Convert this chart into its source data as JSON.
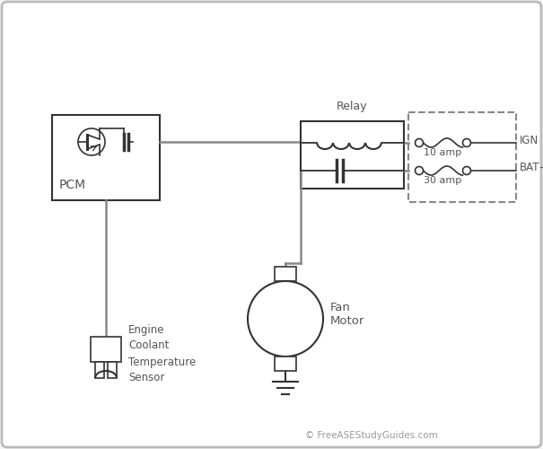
{
  "bg_color": "#f5f5f5",
  "border_color": "#cccccc",
  "line_color": "#888888",
  "dark_color": "#333333",
  "title_text": "© FreeASEStudyGuides.com",
  "relay_label": "Relay",
  "pcm_label": "PCM",
  "fan_motor_label": "Fan\nMotor",
  "sensor_label": "Engine\nCoolant\nTemperature\nSensor",
  "ign_label": "IGN",
  "bat_label": "BAT+",
  "ign_amp": "10 amp",
  "bat_amp": "30 amp"
}
